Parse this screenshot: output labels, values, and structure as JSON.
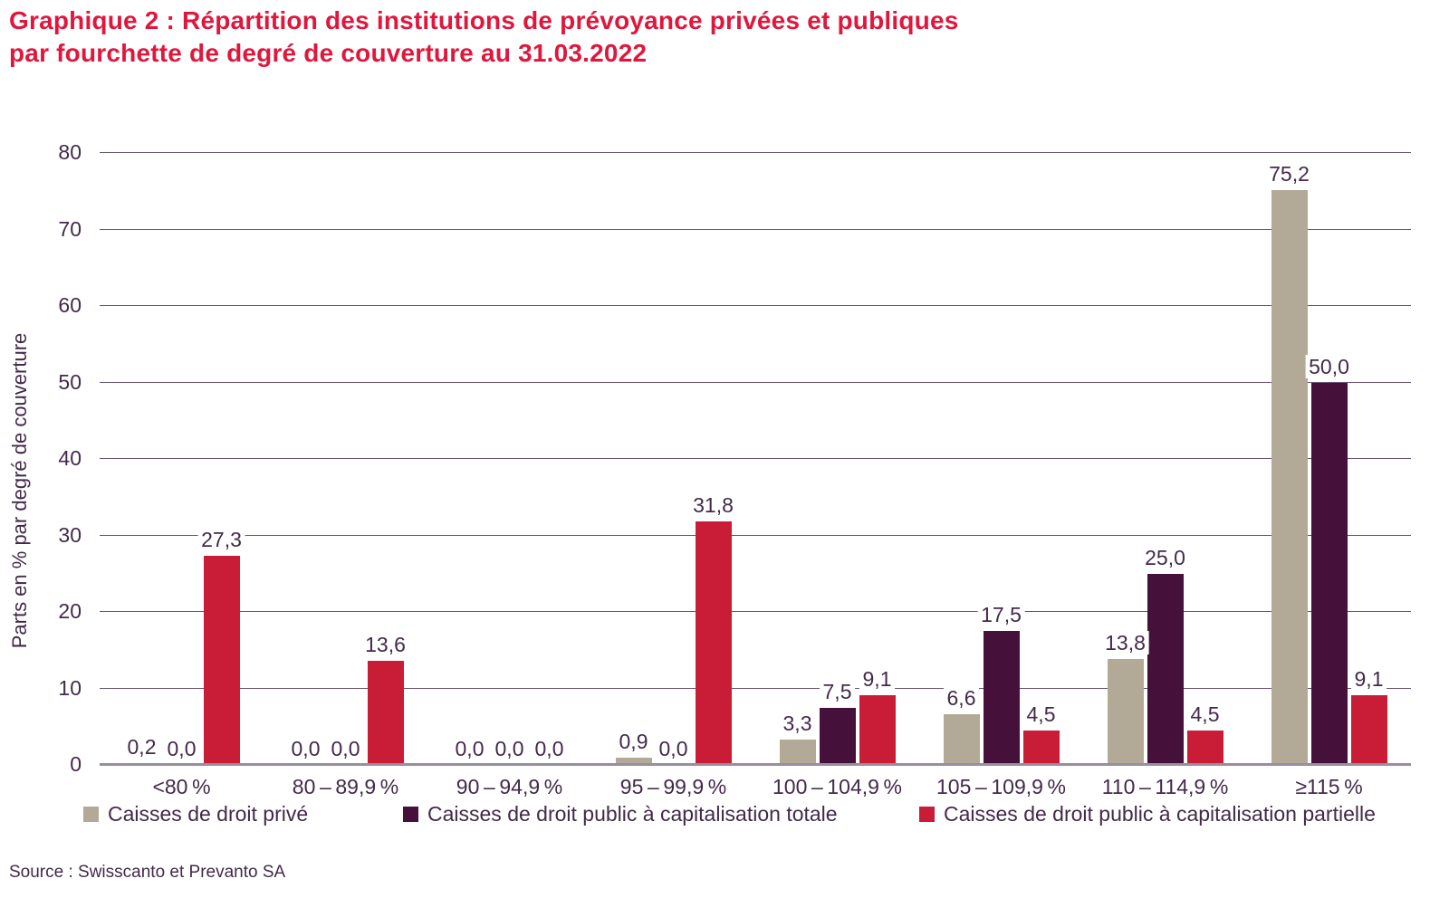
{
  "title": {
    "line1": "Graphique 2 : Répartition des institutions de prévoyance privées et publiques",
    "line2": "par fourchette de degré de couverture au 31.03.2022",
    "color": "#e0173d"
  },
  "chart_data": {
    "type": "bar",
    "title": "Graphique 2 : Répartition des institutions de prévoyance privées et publiques par fourchette de degré de couverture au 31.03.2022",
    "xlabel": "",
    "ylabel": "Parts en % par degré de couverture",
    "ylim": [
      0,
      80
    ],
    "yticks": [
      0,
      10,
      20,
      30,
      40,
      50,
      60,
      70,
      80
    ],
    "grid": true,
    "legend_position": "bottom",
    "decimal_separator": ",",
    "categories": [
      "<80 %",
      "80 – 89,9 %",
      "90 – 94,9 %",
      "95 – 99,9 %",
      "100 – 104,9 %",
      "105 – 109,9 %",
      "110 – 114,9 %",
      "≥115 %"
    ],
    "series": [
      {
        "name": "Caisses de droit privé",
        "color": "#b2a996",
        "values": [
          0.2,
          0.0,
          0.0,
          0.9,
          3.3,
          6.6,
          13.8,
          75.2
        ]
      },
      {
        "name": "Caisses de droit public à capitalisation totale",
        "color": "#45103a",
        "values": [
          0.0,
          0.0,
          0.0,
          0.0,
          7.5,
          17.5,
          25.0,
          50.0
        ]
      },
      {
        "name": "Caisses de droit public à capitalisation partielle",
        "color": "#c91d37",
        "values": [
          27.3,
          13.6,
          0.0,
          31.8,
          9.1,
          4.5,
          4.5,
          9.1
        ]
      }
    ]
  },
  "colors": {
    "text": "#43294a",
    "gridline": "#6a5572",
    "axis_line": "#978ea2",
    "title": "#e0173d",
    "background": "#ffffff"
  },
  "source": {
    "text": "Source : Swisscanto et Prevanto SA"
  }
}
